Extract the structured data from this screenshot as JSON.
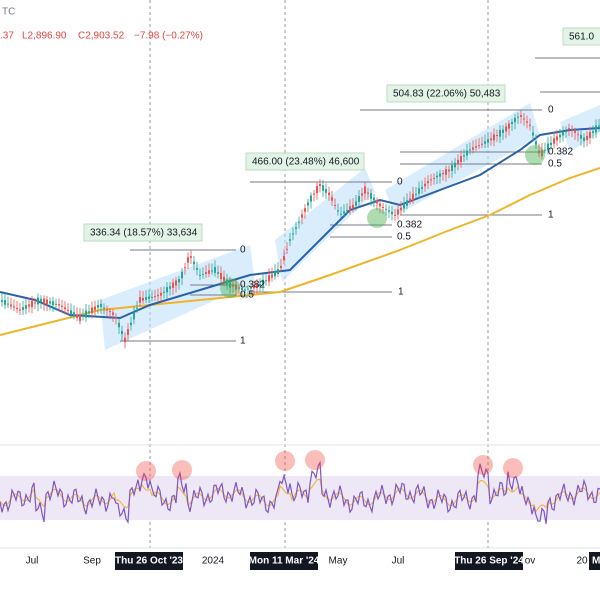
{
  "header": {
    "symbol": "TC",
    "open": ".37",
    "low": "L2,896.90",
    "close": "C2,903.52",
    "change": "−7.98 (−0.27%)"
  },
  "annotations": [
    "336.34 (18.57%) 33,634",
    "466.00 (23.48%) 46,600",
    "504.83 (22.06%) 50,483",
    "561.0"
  ],
  "fib_labels": [
    "0",
    "0.382",
    "0.5",
    "1",
    "1",
    "0",
    "0.382",
    "0.5",
    "1",
    "0",
    "0.382",
    "0.5"
  ],
  "x_axis": [
    "Jul",
    "Sep",
    "Thu 26 Oct '23",
    "2024",
    "Mon 11 Mar '24",
    "May",
    "Jul",
    "Thu 26 Sep '24",
    "ov",
    "20",
    "M"
  ]
}
